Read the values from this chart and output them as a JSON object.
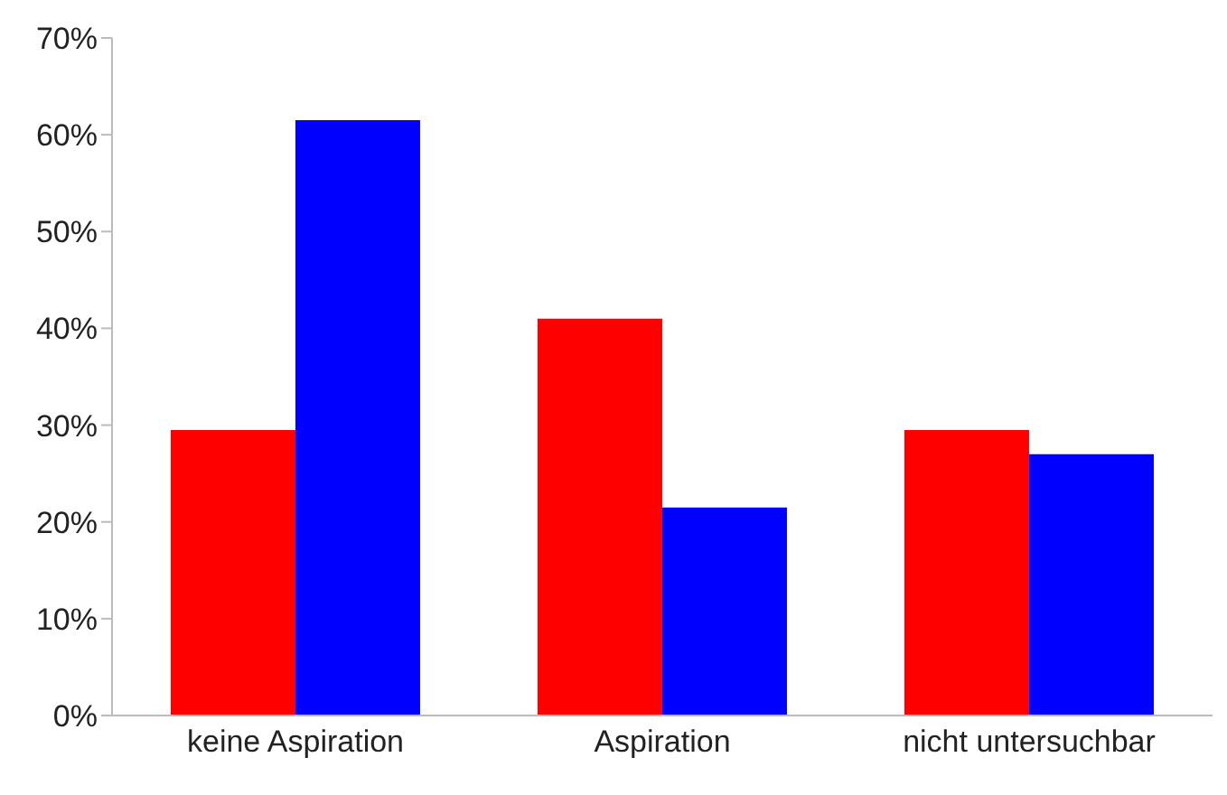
{
  "chart_data": {
    "type": "bar",
    "categories": [
      "keine Aspiration",
      "Aspiration",
      "nicht untersuchbar"
    ],
    "series": [
      {
        "color": "#ff0000",
        "values": [
          29.5,
          41,
          29.5
        ]
      },
      {
        "color": "#0000ff",
        "values": [
          61.5,
          21.5,
          27
        ]
      }
    ],
    "ylim": [
      0,
      70
    ],
    "yticks": [
      {
        "value": 0,
        "label": "0%"
      },
      {
        "value": 10,
        "label": "10%"
      },
      {
        "value": 20,
        "label": "20%"
      },
      {
        "value": 30,
        "label": "30%"
      },
      {
        "value": 40,
        "label": "40%"
      },
      {
        "value": 50,
        "label": "50%"
      },
      {
        "value": 60,
        "label": "60%"
      },
      {
        "value": 70,
        "label": "70%"
      }
    ],
    "grid": false,
    "legend": false
  }
}
